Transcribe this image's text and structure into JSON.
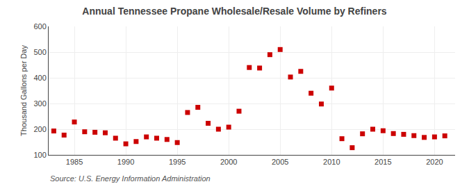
{
  "chart_data": {
    "type": "scatter",
    "title": "Annual Tennessee Propane Wholesale/Resale Volume by Refiners",
    "ylabel": "Thousand Gallons per Day",
    "annotations": [
      "Source: U.S. Energy Information Administration"
    ],
    "x": [
      1983,
      1984,
      1985,
      1986,
      1987,
      1988,
      1989,
      1990,
      1991,
      1992,
      1993,
      1994,
      1995,
      1996,
      1997,
      1998,
      1999,
      2000,
      2001,
      2002,
      2003,
      2004,
      2005,
      2006,
      2007,
      2008,
      2009,
      2010,
      2011,
      2012,
      2013,
      2014,
      2015,
      2016,
      2017,
      2018,
      2019,
      2020,
      2021
    ],
    "values": [
      193,
      177,
      228,
      190,
      188,
      186,
      165,
      143,
      152,
      170,
      165,
      160,
      148,
      265,
      285,
      223,
      200,
      208,
      270,
      440,
      438,
      490,
      510,
      403,
      425,
      340,
      298,
      360,
      163,
      128,
      182,
      200,
      194,
      183,
      180,
      175,
      168,
      170,
      174
    ],
    "color": "#cc0000",
    "marker": "square",
    "xlim": [
      1982.5,
      2022
    ],
    "xticks": [
      1985,
      1990,
      1995,
      2000,
      2005,
      2010,
      2015,
      2020
    ],
    "ylim": [
      100,
      600
    ],
    "yticks": [
      100,
      200,
      300,
      400,
      500,
      600
    ],
    "grid": true
  }
}
